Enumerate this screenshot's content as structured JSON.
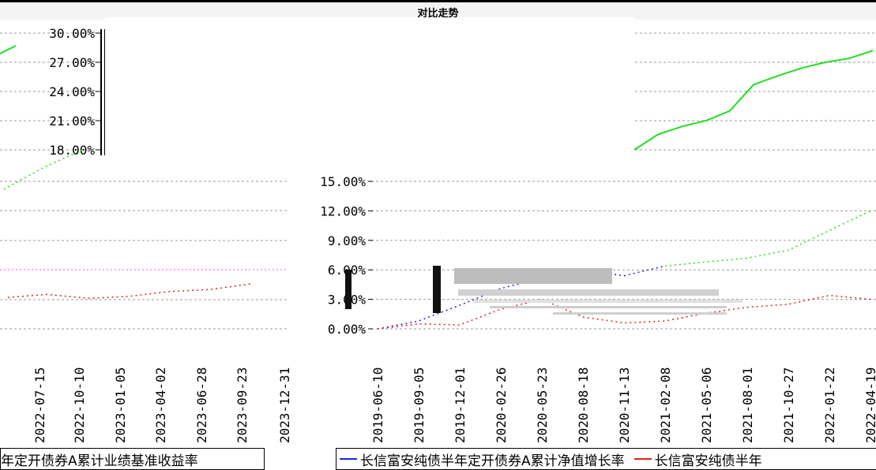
{
  "title": "对比走势",
  "colors": {
    "nav_series": "#2020e0",
    "benchmark_series": "#e02020",
    "cumulative_series": "#22dd22",
    "reference_line": "#ff44ff",
    "grid": "#999999"
  },
  "chart_data": [
    {
      "type": "line",
      "panel": "left",
      "x_ticks": [
        "2022-07-15",
        "2022-10-10",
        "2023-01-05",
        "2023-04-02",
        "2023-06-28",
        "2023-09-23",
        "2023-12-31"
      ],
      "y_ticks": [
        "30.00%",
        "27.00%",
        "24.00%",
        "21.00%",
        "18.00%"
      ],
      "legend": [
        "年定开债券A累计业绩基准收益率"
      ],
      "series": [
        {
          "name": "",
          "color": "#22dd22",
          "x": [
            "2022-07-15",
            "2022-10-10",
            "2023-01-05"
          ],
          "values": [
            14.2,
            16.4,
            18.3
          ]
        },
        {
          "name": "",
          "color": "#e02020",
          "x": [
            "2022-07-15",
            "2022-10-10",
            "2023-01-05",
            "2023-04-02",
            "2023-06-28",
            "2023-09-23",
            "2023-12-31"
          ],
          "values": [
            3.2,
            3.5,
            3.1,
            3.3,
            3.8,
            4.0,
            4.6
          ]
        }
      ]
    },
    {
      "type": "line",
      "panel": "right",
      "x_ticks": [
        "2019-06-10",
        "2019-09-05",
        "2019-12-01",
        "2020-02-26",
        "2020-05-23",
        "2020-08-18",
        "2020-11-13",
        "2021-02-08",
        "2021-05-06",
        "2021-08-01",
        "2021-10-27",
        "2022-01-22",
        "2022-04-19"
      ],
      "y_ticks": [
        "15.00%",
        "12.00%",
        "9.00%",
        "6.00%",
        "3.00%",
        "0.00%"
      ],
      "legend": [
        "长信富安纯债半年定开债券A累计净值增长率",
        "长信富安纯债半年"
      ],
      "series": [
        {
          "name": "长信富安纯债半年定开债券A累计净值增长率",
          "color": "#2020e0",
          "x": [
            "2019-06-10",
            "2019-09-05",
            "2019-12-01",
            "2020-02-26",
            "2020-05-23",
            "2020-08-18",
            "2020-11-13",
            "2021-02-08"
          ],
          "values": [
            0.0,
            0.8,
            2.4,
            4.1,
            5.2,
            6.0,
            5.4,
            6.4
          ]
        },
        {
          "name": "长信富安纯债半年",
          "color": "#e02020",
          "x": [
            "2019-06-10",
            "2019-09-05",
            "2019-12-01",
            "2020-02-26",
            "2020-05-23",
            "2020-08-18",
            "2020-11-13",
            "2021-02-08",
            "2021-05-06",
            "2021-08-01",
            "2021-10-27",
            "2022-01-22",
            "2022-04-19"
          ],
          "values": [
            0.0,
            0.5,
            0.4,
            2.0,
            3.0,
            1.2,
            0.6,
            0.8,
            1.6,
            2.2,
            2.5,
            3.4,
            3.0
          ]
        },
        {
          "name": "",
          "color": "#22dd22",
          "x": [
            "2021-02-08",
            "2021-05-06",
            "2021-08-01",
            "2021-10-27",
            "2022-01-22",
            "2022-04-19"
          ],
          "values": [
            6.4,
            6.8,
            7.2,
            8.0,
            10.0,
            12.0
          ]
        }
      ]
    },
    {
      "type": "line",
      "panel": "top-right",
      "y_ticks": [
        "30.00%",
        "27.00%",
        "24.00%",
        "21.00%",
        "18.00%"
      ],
      "series": [
        {
          "name": "",
          "color": "#22dd22",
          "values": [
            18.0,
            19.6,
            20.4,
            21.0,
            22.0,
            24.7,
            25.6,
            26.4,
            27.0,
            27.4,
            28.2
          ]
        }
      ]
    }
  ]
}
